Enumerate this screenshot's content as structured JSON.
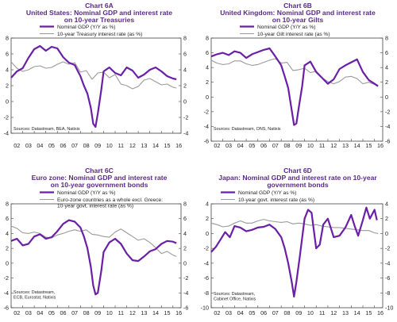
{
  "colors": {
    "gdp": "#6a1fa6",
    "rate": "#9a9a9a",
    "title": "#5b2a86"
  },
  "chart_data": [
    {
      "type": "line",
      "title": "Chart 6A",
      "subtitle": "United States: Nominal GDP and interest rate on 10-year Treasuries",
      "subtitle_lines": [
        "United States: Nominal GDP and interest rate",
        "on 10-year Treasuries"
      ],
      "xlim": [
        2002,
        2016.7
      ],
      "xticks": [
        "02",
        "03",
        "04",
        "05",
        "06",
        "07",
        "08",
        "09",
        "10",
        "11",
        "12",
        "13",
        "14",
        "15",
        "16"
      ],
      "ylim_left": [
        -4,
        8
      ],
      "yticks_left": [
        "-4",
        "-2",
        "0",
        "2",
        "4",
        "6",
        "8"
      ],
      "ylim_right": [
        -4,
        8
      ],
      "yticks_right": [
        "-4",
        "-2",
        "0",
        "2",
        "4",
        "6",
        "8"
      ],
      "legend": [
        "Nominal GDP (Y/Y as %)",
        "10-year Treasury interest rate (as %)"
      ],
      "legend_lines": [
        [
          "Nominal GDP (Y/Y as %)"
        ],
        [
          "10-year Treasury interest rate (as %)"
        ]
      ],
      "source_lines": [
        "Sources: Datastream, BEA, Natixis"
      ],
      "series": [
        {
          "name": "Nominal GDP (Y/Y as %)",
          "axis": "left",
          "x": [
            2002,
            2002.5,
            2003,
            2003.5,
            2004,
            2004.5,
            2005,
            2005.5,
            2006,
            2006.5,
            2007,
            2007.5,
            2008,
            2008.3,
            2008.6,
            2008.9,
            2009.1,
            2009.3,
            2009.5,
            2009.8,
            2010,
            2010.5,
            2011,
            2011.5,
            2012,
            2012.5,
            2013,
            2013.5,
            2014,
            2014.5,
            2015,
            2015.5,
            2016,
            2016.3
          ],
          "values": [
            3.0,
            3.8,
            4.2,
            5.5,
            6.6,
            7.0,
            6.4,
            6.9,
            6.7,
            5.6,
            4.9,
            4.6,
            3.2,
            2.0,
            1.0,
            -0.8,
            -2.8,
            -3.2,
            -1.5,
            1.5,
            3.8,
            4.3,
            3.6,
            3.3,
            4.3,
            3.9,
            3.0,
            3.4,
            4.0,
            4.3,
            3.8,
            3.2,
            2.9,
            2.8
          ]
        },
        {
          "name": "10-year Treasury interest rate (as %)",
          "axis": "right",
          "x": [
            2002,
            2002.5,
            2003,
            2003.5,
            2004,
            2004.5,
            2005,
            2005.5,
            2006,
            2006.5,
            2007,
            2007.5,
            2008,
            2008.5,
            2009,
            2009.5,
            2010,
            2010.5,
            2011,
            2011.5,
            2012,
            2012.5,
            2013,
            2013.5,
            2014,
            2014.5,
            2015,
            2015.5,
            2016,
            2016.3
          ],
          "values": [
            5.0,
            4.2,
            3.8,
            4.0,
            4.4,
            4.5,
            4.2,
            4.3,
            4.7,
            5.0,
            4.7,
            4.9,
            3.7,
            3.9,
            2.8,
            3.6,
            3.7,
            3.0,
            3.4,
            2.2,
            2.0,
            1.6,
            1.9,
            2.7,
            2.9,
            2.5,
            2.1,
            2.2,
            1.8,
            1.7
          ]
        }
      ]
    },
    {
      "type": "line",
      "title": "Chart 6B",
      "subtitle": "United Kingdom: Nominal GDP and interest rate on 10-year Gilts",
      "subtitle_lines": [
        "United Kingdom: Nominal GDP and interest rate",
        "on 10-year Gilts"
      ],
      "xlim": [
        2002,
        2016.7
      ],
      "xticks": [
        "02",
        "03",
        "04",
        "05",
        "06",
        "07",
        "08",
        "09",
        "10",
        "11",
        "12",
        "13",
        "14",
        "15",
        "16"
      ],
      "ylim_left": [
        -6,
        8
      ],
      "yticks_left": [
        "-6",
        "-4",
        "-2",
        "0",
        "2",
        "4",
        "6",
        "8"
      ],
      "ylim_right": [
        -6,
        8
      ],
      "yticks_right": [
        "-6",
        "-4",
        "-2",
        "0",
        "2",
        "4",
        "6",
        "8"
      ],
      "legend": [
        "Nominal GDP (Y/Y as %)",
        "10-year Gilt interest rate (as %)"
      ],
      "legend_lines": [
        [
          "Nominal GDP (Y/Y as %)"
        ],
        [
          "10-year Gilt interest rate (as %)"
        ]
      ],
      "source_lines": [
        "Sources: Datastream, ONS, Natixis"
      ],
      "series": [
        {
          "name": "Nominal GDP (Y/Y as %)",
          "axis": "left",
          "x": [
            2002,
            2002.5,
            2003,
            2003.5,
            2004,
            2004.5,
            2005,
            2005.5,
            2006,
            2006.5,
            2007,
            2007.5,
            2008,
            2008.3,
            2008.6,
            2008.9,
            2009.1,
            2009.3,
            2009.5,
            2009.8,
            2010,
            2010.5,
            2011,
            2011.5,
            2012,
            2012.5,
            2013,
            2013.5,
            2014,
            2014.5,
            2015,
            2015.5,
            2016,
            2016.3
          ],
          "values": [
            5.5,
            5.8,
            6.0,
            5.7,
            6.2,
            6.0,
            5.3,
            5.8,
            6.1,
            6.4,
            6.6,
            5.5,
            4.3,
            2.8,
            1.2,
            -1.8,
            -3.8,
            -3.6,
            -1.5,
            1.5,
            4.3,
            4.8,
            3.4,
            2.6,
            1.8,
            2.4,
            3.8,
            4.3,
            4.7,
            5.1,
            3.4,
            2.3,
            1.8,
            1.5
          ]
        },
        {
          "name": "10-year Gilt interest rate (as %)",
          "axis": "right",
          "x": [
            2002,
            2002.5,
            2003,
            2003.5,
            2004,
            2004.5,
            2005,
            2005.5,
            2006,
            2006.5,
            2007,
            2007.5,
            2008,
            2008.5,
            2009,
            2009.5,
            2010,
            2010.5,
            2011,
            2011.5,
            2012,
            2012.5,
            2013,
            2013.5,
            2014,
            2014.5,
            2015,
            2015.5,
            2016,
            2016.3
          ],
          "values": [
            5.0,
            4.6,
            4.4,
            4.5,
            4.9,
            4.9,
            4.5,
            4.3,
            4.4,
            4.7,
            5.0,
            5.2,
            4.6,
            4.7,
            3.6,
            3.7,
            3.9,
            3.3,
            3.5,
            2.6,
            2.1,
            1.8,
            2.1,
            2.7,
            2.8,
            2.5,
            1.8,
            2.0,
            1.7,
            1.4
          ]
        }
      ]
    },
    {
      "type": "line",
      "title": "Chart 6C",
      "subtitle": "Euro zone: Nominal GDP and interest rate on 10-year government bonds",
      "subtitle_lines": [
        "Euro zone: Nominal GDP and interest rate",
        "on 10-year government bonds"
      ],
      "xlim": [
        2002,
        2016.7
      ],
      "xticks": [
        "02",
        "03",
        "04",
        "05",
        "06",
        "07",
        "08",
        "09",
        "10",
        "11",
        "12",
        "13",
        "14",
        "15",
        "16"
      ],
      "ylim_left": [
        -6,
        8
      ],
      "yticks_left": [
        "-6",
        "-4",
        "-2",
        "0",
        "2",
        "4",
        "6",
        "8"
      ],
      "ylim_right": [
        -6,
        8
      ],
      "yticks_right": [
        "-6",
        "-4",
        "-2",
        "0",
        "2",
        "4",
        "6",
        "8"
      ],
      "legend": [
        "Nominal GDP (Y/Y as %)",
        "Euro-zone countries as a whole excl. Greece: 10-year govt. interest rate (as %)"
      ],
      "legend_lines": [
        [
          "Nominal GDP (Y/Y as %)"
        ],
        [
          "Euro-zone countries as a whole excl. Greece:",
          "10-year govt. interest rate (as %)"
        ]
      ],
      "source_lines": [
        "Sources: Datastream,",
        "ECB, Eurostat, Natixis"
      ],
      "series": [
        {
          "name": "Nominal GDP (Y/Y as %)",
          "axis": "left",
          "x": [
            2002,
            2002.5,
            2003,
            2003.5,
            2004,
            2004.5,
            2005,
            2005.5,
            2006,
            2006.5,
            2007,
            2007.5,
            2008,
            2008.3,
            2008.6,
            2008.9,
            2009.1,
            2009.3,
            2009.5,
            2009.8,
            2010,
            2010.5,
            2011,
            2011.5,
            2012,
            2012.5,
            2013,
            2013.5,
            2014,
            2014.5,
            2015,
            2015.5,
            2016,
            2016.3
          ],
          "values": [
            3.0,
            3.3,
            2.4,
            2.6,
            3.6,
            3.9,
            3.3,
            3.5,
            4.3,
            5.3,
            5.8,
            5.6,
            4.8,
            3.6,
            2.0,
            -0.5,
            -3.0,
            -4.2,
            -4.0,
            -1.0,
            1.5,
            2.8,
            3.3,
            2.6,
            1.3,
            0.4,
            0.3,
            0.9,
            1.6,
            1.9,
            2.6,
            3.0,
            2.9,
            2.7
          ]
        },
        {
          "name": "Euro-zone countries as a whole excl. Greece: 10-year govt. interest rate (as %)",
          "axis": "right",
          "x": [
            2002,
            2002.5,
            2003,
            2003.5,
            2004,
            2004.5,
            2005,
            2005.5,
            2006,
            2006.5,
            2007,
            2007.5,
            2008,
            2008.5,
            2009,
            2009.5,
            2010,
            2010.5,
            2011,
            2011.5,
            2012,
            2012.5,
            2013,
            2013.5,
            2014,
            2014.5,
            2015,
            2015.5,
            2016,
            2016.3
          ],
          "values": [
            5.0,
            4.7,
            4.1,
            4.0,
            4.2,
            4.0,
            3.5,
            3.4,
            3.8,
            4.0,
            4.3,
            4.5,
            4.3,
            4.5,
            3.9,
            3.8,
            3.6,
            3.5,
            4.2,
            4.6,
            4.1,
            3.6,
            3.1,
            3.3,
            2.8,
            2.1,
            1.3,
            1.6,
            1.1,
            0.9
          ]
        }
      ]
    },
    {
      "type": "line",
      "title": "Chart 6D",
      "subtitle": "Japan: Nominal GDP and interest rate on 10-year government bonds",
      "subtitle_lines": [
        "Japan: Nominal GDP and interest rate on 10-year",
        "government bonds"
      ],
      "xlim": [
        2002,
        2016.7
      ],
      "xticks": [
        "02",
        "03",
        "04",
        "05",
        "06",
        "07",
        "08",
        "09",
        "10",
        "11",
        "12",
        "13",
        "14",
        "15",
        "16"
      ],
      "ylim_left": [
        -10,
        4
      ],
      "yticks_left": [
        "-10",
        "-8",
        "-6",
        "-4",
        "-2",
        "0",
        "2",
        "4"
      ],
      "ylim_right": [
        -10,
        4
      ],
      "yticks_right": [
        "-10",
        "-8",
        "-6",
        "-4",
        "-2",
        "0",
        "2",
        "4"
      ],
      "legend": [
        "Nominal GDP (Y/Y as %)",
        "10-year govt. interest rate (as %)"
      ],
      "legend_lines": [
        [
          "Nominal GDP (Y/Y as %)"
        ],
        [
          "10-year govt. interest rate (as %)"
        ]
      ],
      "source_lines": [
        "Sources: Datastream,",
        "Cabinet Office, Natixis"
      ],
      "series": [
        {
          "name": "Nominal GDP (Y/Y as %)",
          "axis": "left",
          "x": [
            2002,
            2002.4,
            2002.8,
            2003.2,
            2003.6,
            2004,
            2004.5,
            2005,
            2005.5,
            2006,
            2006.5,
            2007,
            2007.5,
            2008,
            2008.3,
            2008.6,
            2008.9,
            2009.1,
            2009.3,
            2009.6,
            2010,
            2010.3,
            2010.6,
            2011,
            2011.3,
            2011.6,
            2012,
            2012.5,
            2013,
            2013.5,
            2014,
            2014.3,
            2014.6,
            2015,
            2015.3,
            2015.6,
            2016,
            2016.2
          ],
          "values": [
            -2.5,
            -1.8,
            -0.8,
            0.2,
            -0.5,
            1.0,
            0.8,
            0.3,
            0.5,
            0.8,
            0.9,
            1.2,
            0.6,
            -0.5,
            -2.0,
            -4.0,
            -6.5,
            -8.5,
            -6.5,
            -3.0,
            2.0,
            3.2,
            2.8,
            -2.0,
            -1.5,
            1.2,
            2.0,
            -0.5,
            -0.3,
            0.8,
            2.5,
            1.0,
            -0.3,
            1.8,
            3.5,
            2.0,
            3.2,
            1.8
          ]
        },
        {
          "name": "10-year govt. interest rate (as %)",
          "axis": "right",
          "x": [
            2002,
            2002.5,
            2003,
            2003.5,
            2004,
            2004.5,
            2005,
            2005.5,
            2006,
            2006.5,
            2007,
            2007.5,
            2008,
            2008.5,
            2009,
            2009.5,
            2010,
            2010.5,
            2011,
            2011.5,
            2012,
            2012.5,
            2013,
            2013.5,
            2014,
            2014.5,
            2015,
            2015.5,
            2016,
            2016.3
          ],
          "values": [
            1.4,
            1.2,
            0.9,
            1.0,
            1.4,
            1.7,
            1.4,
            1.4,
            1.7,
            1.9,
            1.7,
            1.6,
            1.5,
            1.6,
            1.3,
            1.4,
            1.3,
            1.1,
            1.2,
            1.0,
            0.9,
            0.8,
            0.8,
            0.7,
            0.6,
            0.5,
            0.4,
            0.4,
            0.1,
            0.0
          ]
        }
      ]
    }
  ]
}
